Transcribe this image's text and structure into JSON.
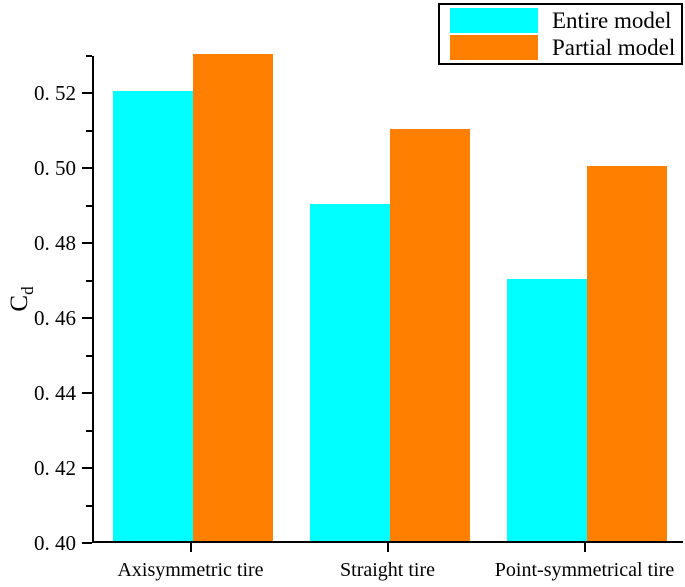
{
  "figure": {
    "background": "#ffffff",
    "axis_color": "#000000"
  },
  "legend": {
    "position": "top-right",
    "items": [
      {
        "label": "Entire model",
        "color": "#00ffff"
      },
      {
        "label": "Partial model",
        "color": "#ff8000"
      }
    ]
  },
  "chart_data": {
    "type": "bar",
    "title": "",
    "xlabel": "",
    "ylabel": "Cd",
    "ylabel_main": "C",
    "ylabel_sub": "d",
    "categories": [
      "Axisymmetric tire",
      "Straight tire",
      "Point-symmetrical tire"
    ],
    "series": [
      {
        "name": "Entire model",
        "color": "#00ffff",
        "values": [
          0.52,
          0.49,
          0.47
        ]
      },
      {
        "name": "Partial model",
        "color": "#ff8000",
        "values": [
          0.53,
          0.51,
          0.5
        ]
      }
    ],
    "ylim": [
      0.4,
      0.53
    ],
    "y_major_ticks": [
      {
        "value": 0.4,
        "label": "0. 40"
      },
      {
        "value": 0.42,
        "label": "0. 42"
      },
      {
        "value": 0.44,
        "label": "0. 44"
      },
      {
        "value": 0.46,
        "label": "0. 46"
      },
      {
        "value": 0.48,
        "label": "0. 48"
      },
      {
        "value": 0.5,
        "label": "0. 50"
      },
      {
        "value": 0.52,
        "label": "0. 52"
      }
    ],
    "y_minor_ticks": [
      0.41,
      0.43,
      0.45,
      0.47,
      0.49,
      0.51,
      0.53
    ],
    "grid": false,
    "legend_position": "top-right"
  }
}
